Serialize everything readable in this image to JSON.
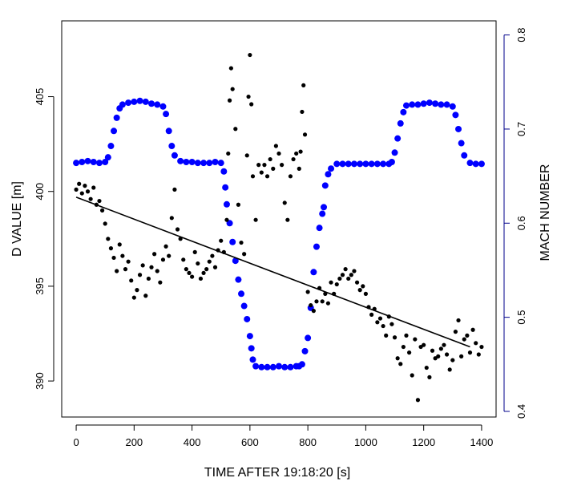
{
  "chart_data": {
    "type": "scatter",
    "xlabel": "TIME AFTER 19:18:20 [s]",
    "ylabel_left": "D VALUE [m]",
    "ylabel_right": "MACH NUMBER",
    "xlim": [
      -50,
      1450
    ],
    "ylim_left": [
      388.1,
      409.0
    ],
    "ylim_right": [
      0.394,
      0.815
    ],
    "x_ticks": [
      0,
      200,
      400,
      600,
      800,
      1000,
      1200,
      1400
    ],
    "y_ticks_left": [
      390,
      395,
      400,
      405
    ],
    "y_ticks_right": [
      0.4,
      0.5,
      0.6,
      0.7,
      0.8
    ],
    "grid": false,
    "colors": {
      "d_value": "#000000",
      "mach": "#0000ff",
      "right_axis": "#00008b"
    },
    "trend_line": {
      "x": [
        0,
        1360
      ],
      "y": [
        399.7,
        391.8
      ]
    },
    "mach_number": {
      "x": [
        0,
        20,
        40,
        60,
        80,
        100,
        110,
        120,
        130,
        140,
        150,
        160,
        180,
        200,
        220,
        240,
        260,
        280,
        300,
        310,
        320,
        330,
        340,
        360,
        380,
        400,
        420,
        440,
        460,
        480,
        500,
        510,
        515,
        520,
        530,
        540,
        550,
        560,
        570,
        580,
        590,
        600,
        605,
        610,
        620,
        640,
        660,
        680,
        700,
        720,
        740,
        760,
        770,
        780,
        790,
        800,
        810,
        820,
        830,
        840,
        850,
        855,
        860,
        870,
        880,
        900,
        920,
        940,
        960,
        980,
        1000,
        1020,
        1040,
        1060,
        1080,
        1090,
        1100,
        1110,
        1120,
        1130,
        1140,
        1160,
        1180,
        1200,
        1220,
        1240,
        1260,
        1280,
        1300,
        1310,
        1320,
        1330,
        1340,
        1360,
        1380,
        1400
      ],
      "y": [
        0.664,
        0.665,
        0.666,
        0.665,
        0.664,
        0.665,
        0.67,
        0.682,
        0.698,
        0.712,
        0.722,
        0.726,
        0.728,
        0.729,
        0.73,
        0.729,
        0.727,
        0.726,
        0.724,
        0.716,
        0.698,
        0.682,
        0.672,
        0.666,
        0.665,
        0.665,
        0.664,
        0.664,
        0.664,
        0.665,
        0.664,
        0.655,
        0.638,
        0.62,
        0.6,
        0.58,
        0.56,
        0.54,
        0.525,
        0.512,
        0.498,
        0.48,
        0.467,
        0.455,
        0.448,
        0.447,
        0.447,
        0.447,
        0.448,
        0.447,
        0.447,
        0.448,
        0.448,
        0.45,
        0.464,
        0.478,
        0.51,
        0.548,
        0.575,
        0.595,
        0.61,
        0.617,
        0.64,
        0.652,
        0.658,
        0.663,
        0.663,
        0.663,
        0.663,
        0.663,
        0.663,
        0.663,
        0.663,
        0.663,
        0.663,
        0.665,
        0.675,
        0.69,
        0.706,
        0.718,
        0.725,
        0.726,
        0.726,
        0.727,
        0.728,
        0.727,
        0.726,
        0.726,
        0.724,
        0.715,
        0.7,
        0.685,
        0.672,
        0.664,
        0.663,
        0.663
      ]
    },
    "d_value": {
      "x": [
        0,
        10,
        20,
        30,
        40,
        50,
        60,
        70,
        80,
        90,
        100,
        110,
        120,
        130,
        140,
        150,
        160,
        170,
        180,
        190,
        200,
        210,
        220,
        230,
        240,
        250,
        260,
        270,
        280,
        290,
        300,
        310,
        320,
        330,
        340,
        350,
        360,
        370,
        380,
        390,
        400,
        410,
        420,
        430,
        440,
        450,
        460,
        470,
        480,
        490,
        500,
        510,
        520,
        525,
        530,
        535,
        540,
        550,
        560,
        570,
        580,
        590,
        595,
        600,
        605,
        610,
        620,
        630,
        640,
        650,
        660,
        670,
        680,
        690,
        700,
        710,
        720,
        730,
        740,
        750,
        760,
        770,
        775,
        780,
        785,
        790,
        800,
        810,
        820,
        830,
        840,
        850,
        860,
        870,
        880,
        890,
        900,
        910,
        920,
        930,
        940,
        950,
        960,
        970,
        980,
        990,
        1000,
        1010,
        1020,
        1030,
        1040,
        1050,
        1060,
        1070,
        1080,
        1090,
        1100,
        1110,
        1120,
        1130,
        1140,
        1150,
        1160,
        1170,
        1180,
        1190,
        1200,
        1210,
        1220,
        1230,
        1240,
        1250,
        1260,
        1270,
        1280,
        1290,
        1300,
        1310,
        1320,
        1330,
        1340,
        1350,
        1360,
        1370,
        1380,
        1390,
        1400
      ],
      "y": [
        400.1,
        400.4,
        399.9,
        400.3,
        400.0,
        399.6,
        400.2,
        399.3,
        399.5,
        399.0,
        398.3,
        397.5,
        397.0,
        396.5,
        395.8,
        397.2,
        396.6,
        395.9,
        396.3,
        395.3,
        394.4,
        394.8,
        395.6,
        396.1,
        394.5,
        395.4,
        396.0,
        396.7,
        395.8,
        395.2,
        396.4,
        397.1,
        396.6,
        398.6,
        400.1,
        398.0,
        397.5,
        396.4,
        395.9,
        395.7,
        395.5,
        396.8,
        396.2,
        395.4,
        395.7,
        395.9,
        396.3,
        396.6,
        396.0,
        396.9,
        397.4,
        396.8,
        398.5,
        402.0,
        404.8,
        406.5,
        405.4,
        403.3,
        399.3,
        397.3,
        396.7,
        401.9,
        405.0,
        407.2,
        404.6,
        400.8,
        398.5,
        401.4,
        401.0,
        401.4,
        400.8,
        401.7,
        401.2,
        402.4,
        402.0,
        401.4,
        399.4,
        398.5,
        400.8,
        401.7,
        402.0,
        401.2,
        402.1,
        404.2,
        405.6,
        403.0,
        394.7,
        394.0,
        393.7,
        394.2,
        394.9,
        394.2,
        394.6,
        394.1,
        395.2,
        394.6,
        395.1,
        395.4,
        395.6,
        395.9,
        395.4,
        395.6,
        395.8,
        395.2,
        394.8,
        395.0,
        394.6,
        393.9,
        393.5,
        393.8,
        393.1,
        393.3,
        392.9,
        392.4,
        393.4,
        393.0,
        392.3,
        391.2,
        390.9,
        391.8,
        392.4,
        391.5,
        390.3,
        392.2,
        389.0,
        391.8,
        391.9,
        390.7,
        390.2,
        391.6,
        391.2,
        391.3,
        391.7,
        391.9,
        391.4,
        390.6,
        391.1,
        392.6,
        393.2,
        391.3,
        392.2,
        392.4,
        391.5,
        392.7,
        392.0,
        391.4,
        391.8
      ]
    }
  }
}
